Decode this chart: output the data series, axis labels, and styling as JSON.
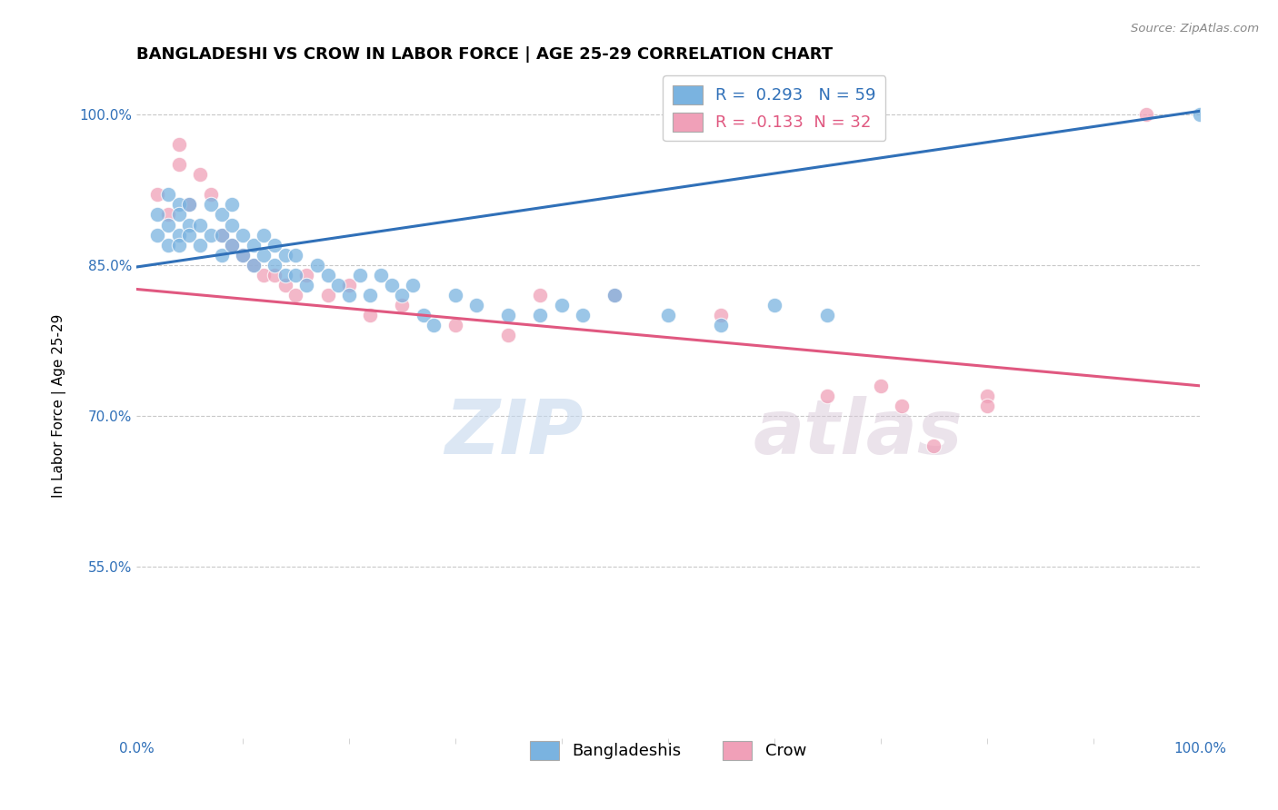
{
  "title": "BANGLADESHI VS CROW IN LABOR FORCE | AGE 25-29 CORRELATION CHART",
  "source": "Source: ZipAtlas.com",
  "ylabel": "In Labor Force | Age 25-29",
  "xlim": [
    0.0,
    1.0
  ],
  "ylim": [
    0.38,
    1.04
  ],
  "yticks": [
    0.55,
    0.7,
    0.85,
    1.0
  ],
  "ytick_labels": [
    "55.0%",
    "70.0%",
    "85.0%",
    "100.0%"
  ],
  "xtick_labels": [
    "0.0%",
    "100.0%"
  ],
  "background_color": "#ffffff",
  "grid_color": "#c8c8c8",
  "blue_color": "#7ab3e0",
  "pink_color": "#f0a0b8",
  "blue_line_color": "#3070b8",
  "pink_line_color": "#e05880",
  "r_blue": 0.293,
  "n_blue": 59,
  "r_pink": -0.133,
  "n_pink": 32,
  "legend_label_blue": "Bangladeshis",
  "legend_label_pink": "Crow",
  "blue_scatter_x": [
    0.02,
    0.02,
    0.03,
    0.03,
    0.03,
    0.04,
    0.04,
    0.04,
    0.04,
    0.05,
    0.05,
    0.05,
    0.06,
    0.06,
    0.07,
    0.07,
    0.08,
    0.08,
    0.08,
    0.09,
    0.09,
    0.09,
    0.1,
    0.1,
    0.11,
    0.11,
    0.12,
    0.12,
    0.13,
    0.13,
    0.14,
    0.14,
    0.15,
    0.15,
    0.16,
    0.17,
    0.18,
    0.19,
    0.2,
    0.21,
    0.22,
    0.23,
    0.24,
    0.25,
    0.26,
    0.27,
    0.28,
    0.3,
    0.32,
    0.35,
    0.38,
    0.4,
    0.42,
    0.45,
    0.5,
    0.55,
    0.6,
    0.65,
    1.0
  ],
  "blue_scatter_y": [
    0.88,
    0.9,
    0.92,
    0.89,
    0.87,
    0.91,
    0.88,
    0.87,
    0.9,
    0.89,
    0.88,
    0.91,
    0.87,
    0.89,
    0.88,
    0.91,
    0.86,
    0.88,
    0.9,
    0.87,
    0.89,
    0.91,
    0.86,
    0.88,
    0.85,
    0.87,
    0.86,
    0.88,
    0.85,
    0.87,
    0.84,
    0.86,
    0.84,
    0.86,
    0.83,
    0.85,
    0.84,
    0.83,
    0.82,
    0.84,
    0.82,
    0.84,
    0.83,
    0.82,
    0.83,
    0.8,
    0.79,
    0.82,
    0.81,
    0.8,
    0.8,
    0.81,
    0.8,
    0.82,
    0.8,
    0.79,
    0.81,
    0.8,
    1.0
  ],
  "pink_scatter_x": [
    0.02,
    0.03,
    0.04,
    0.04,
    0.05,
    0.06,
    0.07,
    0.08,
    0.09,
    0.1,
    0.11,
    0.12,
    0.13,
    0.14,
    0.15,
    0.16,
    0.18,
    0.2,
    0.22,
    0.25,
    0.3,
    0.35,
    0.38,
    0.45,
    0.55,
    0.65,
    0.7,
    0.72,
    0.75,
    0.8,
    0.8,
    0.95
  ],
  "pink_scatter_y": [
    0.92,
    0.9,
    0.95,
    0.97,
    0.91,
    0.94,
    0.92,
    0.88,
    0.87,
    0.86,
    0.85,
    0.84,
    0.84,
    0.83,
    0.82,
    0.84,
    0.82,
    0.83,
    0.8,
    0.81,
    0.79,
    0.78,
    0.82,
    0.82,
    0.8,
    0.72,
    0.73,
    0.71,
    0.67,
    0.72,
    0.71,
    1.0
  ],
  "blue_line_y_start": 0.848,
  "blue_line_y_end": 1.003,
  "pink_line_y_start": 0.826,
  "pink_line_y_end": 0.73,
  "watermark_zip": "ZIP",
  "watermark_atlas": "atlas",
  "title_fontsize": 13,
  "axis_label_fontsize": 11,
  "tick_fontsize": 11,
  "legend_fontsize": 13
}
